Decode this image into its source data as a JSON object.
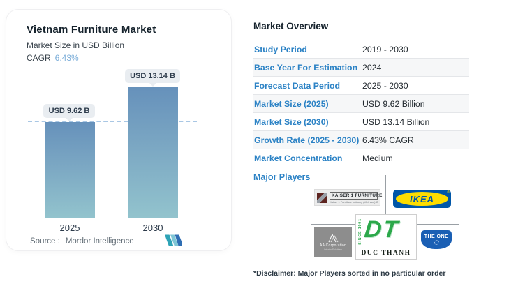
{
  "chart_card": {
    "title": "Vietnam Furniture Market",
    "subtitle": "Market Size in USD Billion",
    "cagr_label": "CAGR",
    "cagr_value": "6.43%",
    "source_label": "Source :",
    "source_value": "Mordor Intelligence"
  },
  "chart_data": {
    "type": "bar",
    "title": "Vietnam Furniture Market",
    "subtitle": "Market Size in USD Billion",
    "categories": [
      "2025",
      "2030"
    ],
    "values": [
      9.62,
      13.14
    ],
    "value_labels": [
      "USD 9.62 B",
      "USD 13.14 B"
    ],
    "cagr": "6.43%",
    "xlabel": "",
    "ylabel": "Market Size in USD Billion",
    "ylim": [
      0,
      13.14
    ],
    "grid": false,
    "reference_line": {
      "value": 9.62,
      "style": "dashed",
      "color": "#a9c7e4"
    },
    "bar_gradient": [
      "#6691bb",
      "#92c3cd"
    ]
  },
  "overview": {
    "title": "Market Overview",
    "rows": [
      {
        "label": "Study Period",
        "value": "2019 - 2030"
      },
      {
        "label": "Base Year For Estimation",
        "value": "2024"
      },
      {
        "label": "Forecast Data Period",
        "value": "2025 - 2030"
      },
      {
        "label": "Market Size (2025)",
        "value": "USD 9.62 Billion"
      },
      {
        "label": "Market Size (2030)",
        "value": "USD 13.14 Billion"
      },
      {
        "label": "Growth Rate (2025 - 2030)",
        "value": "6.43% CAGR"
      },
      {
        "label": "Market Concentration",
        "value": "Medium"
      }
    ],
    "major_players_label": "Major Players",
    "disclaimer": "*Disclaimer: Major Players sorted in no particular order"
  },
  "logos": {
    "kaiser": {
      "name": "KAISER 1 FURNITURE",
      "subtext": "Kaiser 1 Furniture Industry (Vietnam) Co., LTD"
    },
    "ikea": {
      "name": "IKEA",
      "reg": "®"
    },
    "aa": {
      "name": "AA Corporation",
      "subtext": "Interior Solutions"
    },
    "ducthanh": {
      "initials": "DT",
      "side_text": "SINCE 1991",
      "caption": "DUC THANH"
    },
    "theone": {
      "name": "THE ONE"
    }
  },
  "colors": {
    "label_blue": "#2b82c5",
    "cagr_blue": "#7fb0da",
    "bar_top": "#6691bb",
    "bar_bottom": "#92c3cd",
    "reference_dash": "#a9c7e4",
    "ikea_blue": "#0057a8",
    "ikea_yellow": "#fddd00",
    "ducthanh_green": "#2ba84a",
    "theone_blue": "#1a5fb4",
    "kaiser_maroon": "#5e2420",
    "aa_gray": "#8d8d8d",
    "mi_logo_teal": "#2ea3b6",
    "mi_logo_blue": "#2f6eb3"
  }
}
